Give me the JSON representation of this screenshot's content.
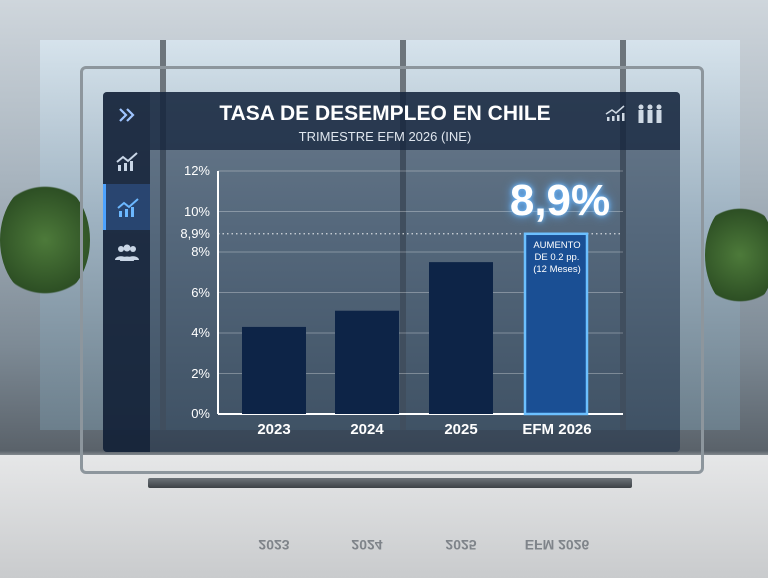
{
  "header": {
    "title": "TASA DE DESEMPLEO EN CHILE",
    "subtitle": "TRIMESTRE EFM 2026 (INE)",
    "icons": [
      "chart-growth-icon",
      "people-icon"
    ]
  },
  "sidebar": {
    "items": [
      {
        "icon": "chevrons-right-icon"
      },
      {
        "icon": "line-chart-icon"
      },
      {
        "icon": "line-chart-icon",
        "active": true
      },
      {
        "icon": "users-icon"
      }
    ]
  },
  "chart_data": {
    "type": "bar",
    "title": "TASA DE DESEMPLEO EN CHILE",
    "subtitle": "TRIMESTRE EFM 2026 (INE)",
    "categories": [
      "2023",
      "2024",
      "2025",
      "EFM 2026"
    ],
    "values": [
      4.3,
      5.1,
      7.5,
      8.9
    ],
    "ylim": [
      0,
      12
    ],
    "yticks": [
      "0%",
      "2%",
      "4%",
      "6%",
      "8%",
      "10%",
      "12%"
    ],
    "ytick_values": [
      0,
      2,
      4,
      6,
      8,
      10,
      12
    ],
    "reference_line": {
      "value": 8.9,
      "label": "8,9%",
      "style": "dotted"
    },
    "highlight": {
      "category": "EFM 2026",
      "value_label": "8,9%",
      "note": [
        "AUMENTO",
        "DE 0.2 pp.",
        "(12 Meses)"
      ]
    },
    "grid": true,
    "colors": {
      "bar": "#0d2447",
      "highlight": "#1a4f94",
      "highlight_border": "#6cc0ff"
    }
  }
}
